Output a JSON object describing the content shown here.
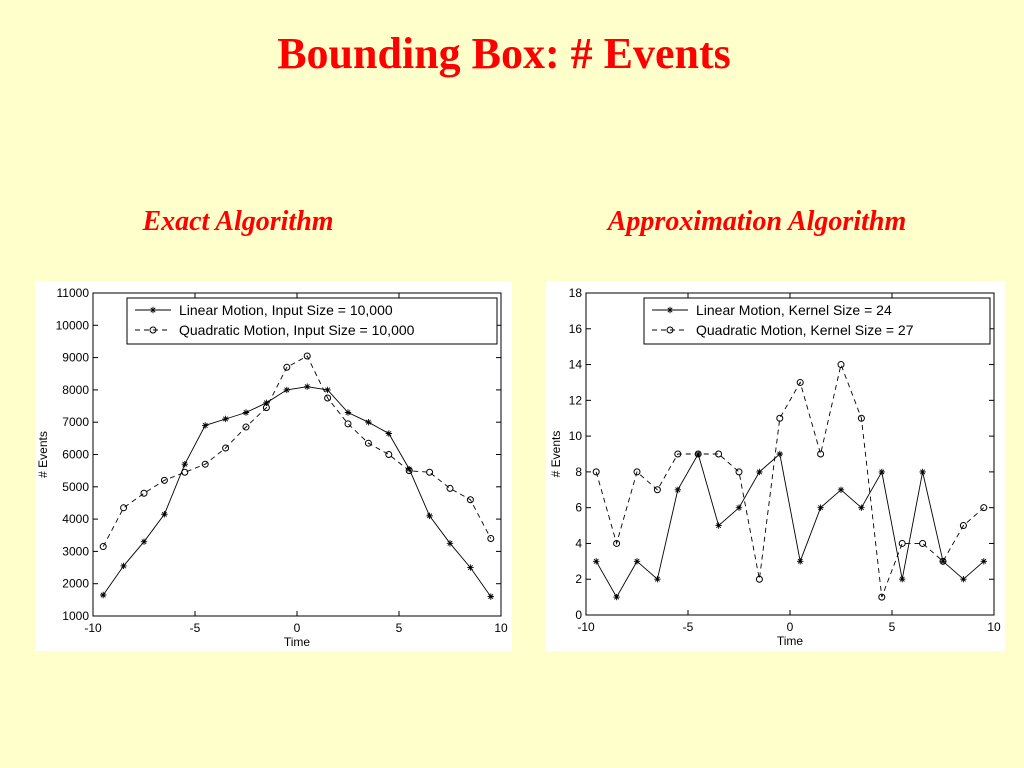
{
  "slide": {
    "title": "Bounding Box: # Events",
    "left_heading": "Exact Algorithm",
    "right_heading": "Approximation Algorithm"
  },
  "colors": {
    "background": "#ffffcc",
    "title": "#ff0000",
    "plot_line": "#000000"
  },
  "chart_data": [
    {
      "type": "line",
      "title": "",
      "xlabel": "Time",
      "ylabel": "# Events",
      "xlim": [
        -10,
        10
      ],
      "ylim": [
        1000,
        11000
      ],
      "xticks": [
        -10,
        -5,
        0,
        5,
        10
      ],
      "yticks": [
        1000,
        2000,
        3000,
        4000,
        5000,
        6000,
        7000,
        8000,
        9000,
        10000,
        11000
      ],
      "xtick_labels": [
        "-10",
        "-5",
        "0",
        "5",
        "10"
      ],
      "ytick_labels": [
        "1000",
        "2000",
        "3000",
        "4000",
        "5000",
        "6000",
        "7000",
        "8000",
        "9000",
        "10000",
        "11000"
      ],
      "grid": false,
      "legend_position": "top-right",
      "series": [
        {
          "name": "Linear Motion, Input Size = 10,000",
          "marker": "star",
          "line": "solid",
          "x": [
            -9.5,
            -8.5,
            -7.5,
            -6.5,
            -5.5,
            -4.5,
            -3.5,
            -2.5,
            -1.5,
            -0.5,
            0.5,
            1.5,
            2.5,
            3.5,
            4.5,
            5.5,
            6.5,
            7.5,
            8.5,
            9.5
          ],
          "y": [
            1650,
            2550,
            3300,
            4150,
            5700,
            6900,
            7100,
            7300,
            7600,
            8000,
            8100,
            8000,
            7300,
            7000,
            6650,
            5550,
            4100,
            3250,
            2500,
            1600
          ]
        },
        {
          "name": "Quadratic Motion, Input Size = 10,000",
          "marker": "circle",
          "line": "dashed",
          "x": [
            -9.5,
            -8.5,
            -7.5,
            -6.5,
            -5.5,
            -4.5,
            -3.5,
            -2.5,
            -1.5,
            -0.5,
            0.5,
            1.5,
            2.5,
            3.5,
            4.5,
            5.5,
            6.5,
            7.5,
            8.5,
            9.5
          ],
          "y": [
            3150,
            4350,
            4800,
            5200,
            5450,
            5700,
            6200,
            6850,
            7450,
            8700,
            9050,
            7750,
            6950,
            6350,
            6000,
            5500,
            5450,
            4950,
            4600,
            3400
          ]
        }
      ]
    },
    {
      "type": "line",
      "title": "",
      "xlabel": "Time",
      "ylabel": "# Events",
      "xlim": [
        -10,
        10
      ],
      "ylim": [
        0,
        18
      ],
      "xticks": [
        -10,
        -5,
        0,
        5,
        10
      ],
      "yticks": [
        0,
        2,
        4,
        6,
        8,
        10,
        12,
        14,
        16,
        18
      ],
      "xtick_labels": [
        "-10",
        "-5",
        "0",
        "5",
        "10"
      ],
      "ytick_labels": [
        "0",
        "2",
        "4",
        "6",
        "8",
        "10",
        "12",
        "14",
        "16",
        "18"
      ],
      "grid": false,
      "legend_position": "top-right",
      "series": [
        {
          "name": "Linear Motion, Kernel Size = 24",
          "marker": "star",
          "line": "solid",
          "x": [
            -9.5,
            -8.5,
            -7.5,
            -6.5,
            -5.5,
            -4.5,
            -3.5,
            -2.5,
            -1.5,
            -0.5,
            0.5,
            1.5,
            2.5,
            3.5,
            4.5,
            5.5,
            6.5,
            7.5,
            8.5,
            9.5
          ],
          "y": [
            3,
            1,
            3,
            2,
            7,
            9,
            5,
            6,
            8,
            9,
            3,
            6,
            7,
            6,
            8,
            2,
            8,
            3,
            2,
            3
          ]
        },
        {
          "name": "Quadratic Motion, Kernel Size = 27",
          "marker": "circle",
          "line": "dashed",
          "x": [
            -9.5,
            -8.5,
            -7.5,
            -6.5,
            -5.5,
            -4.5,
            -3.5,
            -2.5,
            -1.5,
            -0.5,
            0.5,
            1.5,
            2.5,
            3.5,
            4.5,
            5.5,
            6.5,
            7.5,
            8.5,
            9.5
          ],
          "y": [
            8,
            4,
            8,
            7,
            9,
            9,
            9,
            8,
            2,
            11,
            13,
            9,
            14,
            11,
            1,
            4,
            4,
            3,
            5,
            6
          ]
        }
      ]
    }
  ]
}
